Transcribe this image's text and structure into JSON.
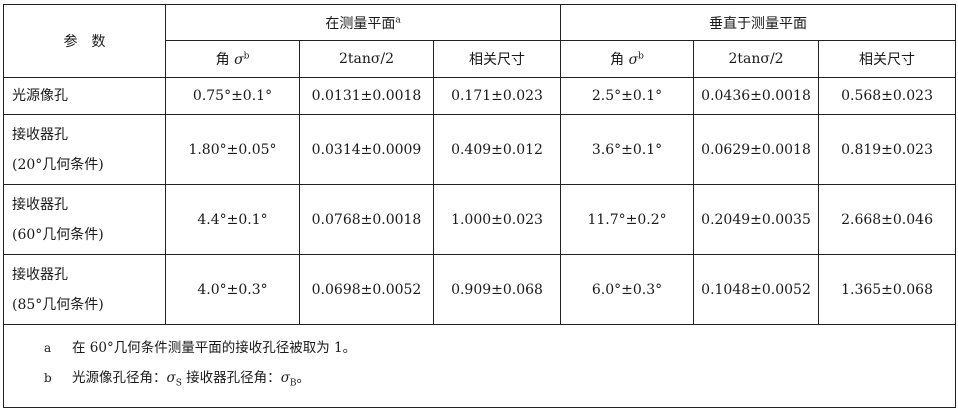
{
  "header": {
    "param": "参　数",
    "group_in": "在测量平面",
    "group_in_note": "a",
    "group_perp": "垂直于测量平面",
    "col_angle": "角 ",
    "col_angle_sym": "σ",
    "col_angle_note": "b",
    "col_tan": "2tanσ/2",
    "col_rel": "相关尺寸"
  },
  "rows": [
    {
      "label": [
        "光源像孔"
      ],
      "in": [
        "0.75°±0.1°",
        "0.0131±0.0018",
        "0.171±0.023"
      ],
      "perp": [
        "2.5°±0.1°",
        "0.0436±0.0018",
        "0.568±0.023"
      ]
    },
    {
      "label": [
        "接收器孔",
        "(20°几何条件)"
      ],
      "in": [
        "1.80°±0.05°",
        "0.0314±0.0009",
        "0.409±0.012"
      ],
      "perp": [
        "3.6°±0.1°",
        "0.0629±0.0018",
        "0.819±0.023"
      ]
    },
    {
      "label": [
        "接收器孔",
        "(60°几何条件)"
      ],
      "in": [
        "4.4°±0.1°",
        "0.0768±0.0018",
        "1.000±0.023"
      ],
      "perp": [
        "11.7°±0.2°",
        "0.2049±0.0035",
        "2.668±0.046"
      ]
    },
    {
      "label": [
        "接收器孔",
        "(85°几何条件)"
      ],
      "in": [
        "4.0°±0.3°",
        "0.0698±0.0052",
        "0.909±0.068"
      ],
      "perp": [
        "6.0°±0.3°",
        "0.1048±0.0052",
        "1.365±0.068"
      ]
    }
  ],
  "footnotes": [
    {
      "mark": "a",
      "text": "在 60°几何条件测量平面的接收孔径被取为 1。"
    },
    {
      "mark": "b",
      "text_1": "光源像孔径角：",
      "sym_1": "σ",
      "sub_1": "S",
      "text_2": " 接收器孔径角：",
      "sym_2": "σ",
      "sub_2": "B",
      "text_3": "。"
    }
  ]
}
